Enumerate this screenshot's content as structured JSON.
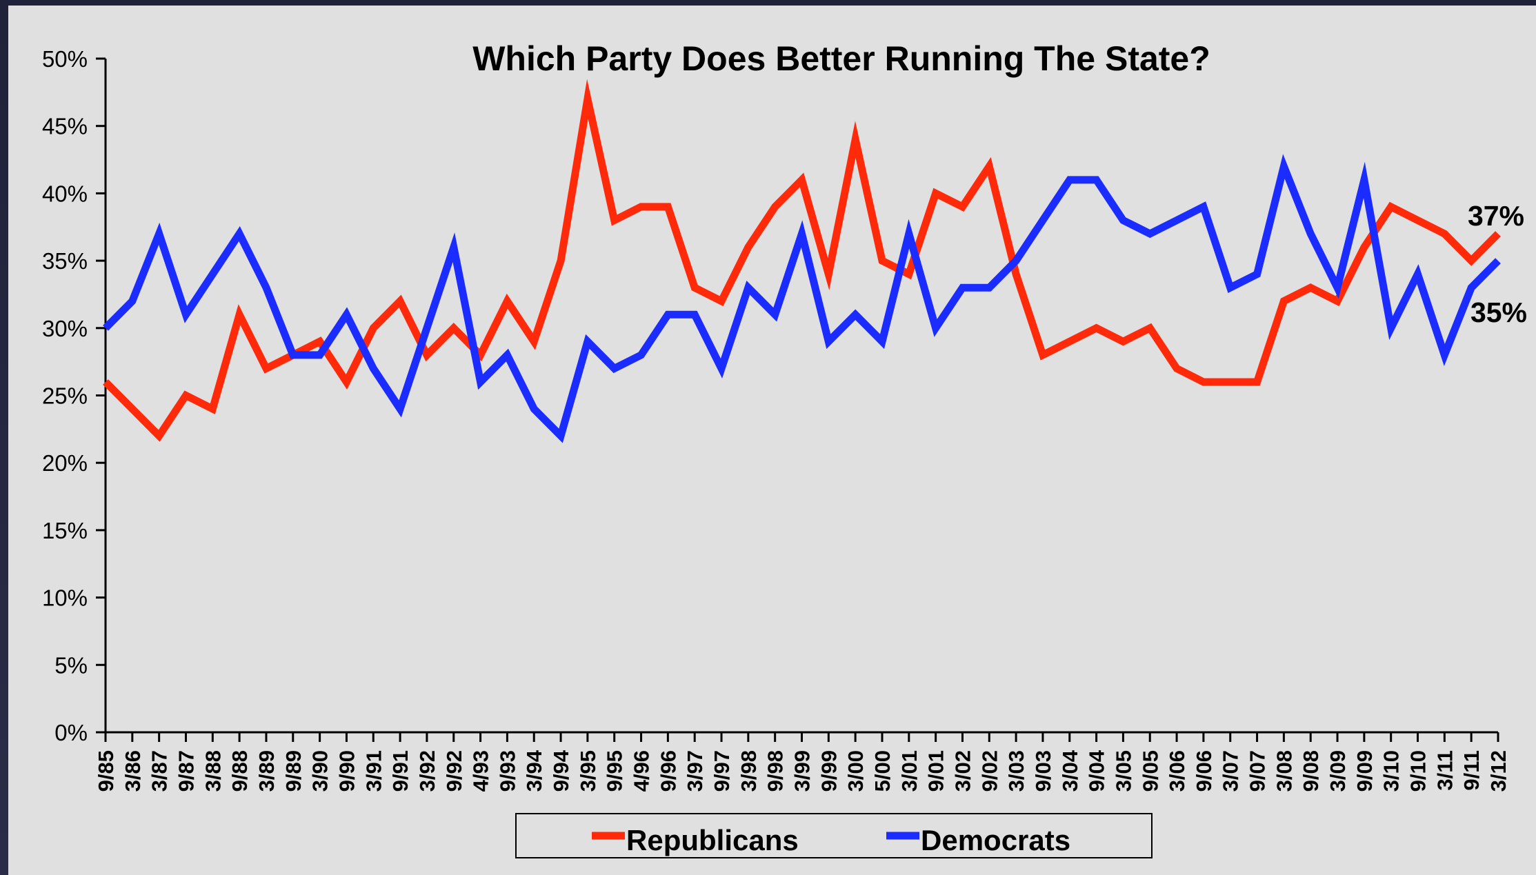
{
  "chart_data": {
    "type": "line",
    "title": "Which Party Does Better Running The State?",
    "xlabel": "",
    "ylabel": "",
    "ylim": [
      0,
      50
    ],
    "yticks": [
      "0%",
      "5%",
      "10%",
      "15%",
      "20%",
      "25%",
      "30%",
      "35%",
      "40%",
      "45%",
      "50%"
    ],
    "categories": [
      "9/85",
      "3/86",
      "3/87",
      "9/87",
      "3/88",
      "9/88",
      "3/89",
      "9/89",
      "3/90",
      "9/90",
      "3/91",
      "9/91",
      "3/92",
      "9/92",
      "4/93",
      "9/93",
      "3/94",
      "9/94",
      "3/95",
      "9/95",
      "4/96",
      "9/96",
      "3/97",
      "9/97",
      "3/98",
      "9/98",
      "3/99",
      "9/99",
      "3/00",
      "5/00",
      "3/01",
      "9/01",
      "3/02",
      "9/02",
      "3/03",
      "9/03",
      "3/04",
      "9/04",
      "3/05",
      "9/05",
      "3/06",
      "9/06",
      "3/07",
      "9/07",
      "3/08",
      "9/08",
      "3/09",
      "9/09",
      "3/10",
      "9/10",
      "3/11",
      "9/11",
      "3/12"
    ],
    "series": [
      {
        "name": "Republicans",
        "color": "#ff2a0a",
        "values": [
          26,
          24,
          22,
          25,
          24,
          31,
          27,
          28,
          29,
          26,
          30,
          32,
          28,
          30,
          28,
          32,
          29,
          35,
          47,
          38,
          39,
          39,
          33,
          32,
          36,
          39,
          41,
          34,
          44,
          35,
          34,
          40,
          39,
          42,
          34,
          28,
          29,
          30,
          29,
          30,
          27,
          26,
          26,
          26,
          32,
          33,
          32,
          36,
          39,
          38,
          37,
          35,
          37
        ]
      },
      {
        "name": "Democrats",
        "color": "#1a2cff",
        "values": [
          30,
          32,
          37,
          31,
          34,
          37,
          33,
          28,
          28,
          31,
          27,
          24,
          30,
          36,
          26,
          28,
          24,
          22,
          29,
          27,
          28,
          31,
          31,
          27,
          33,
          31,
          37,
          29,
          31,
          29,
          37,
          30,
          33,
          33,
          35,
          38,
          41,
          41,
          38,
          37,
          38,
          39,
          33,
          34,
          42,
          37,
          33,
          41,
          30,
          34,
          28,
          33,
          35
        ]
      }
    ],
    "end_labels": [
      "37%",
      "35%"
    ],
    "grid": false,
    "legend": "bottom-center"
  }
}
